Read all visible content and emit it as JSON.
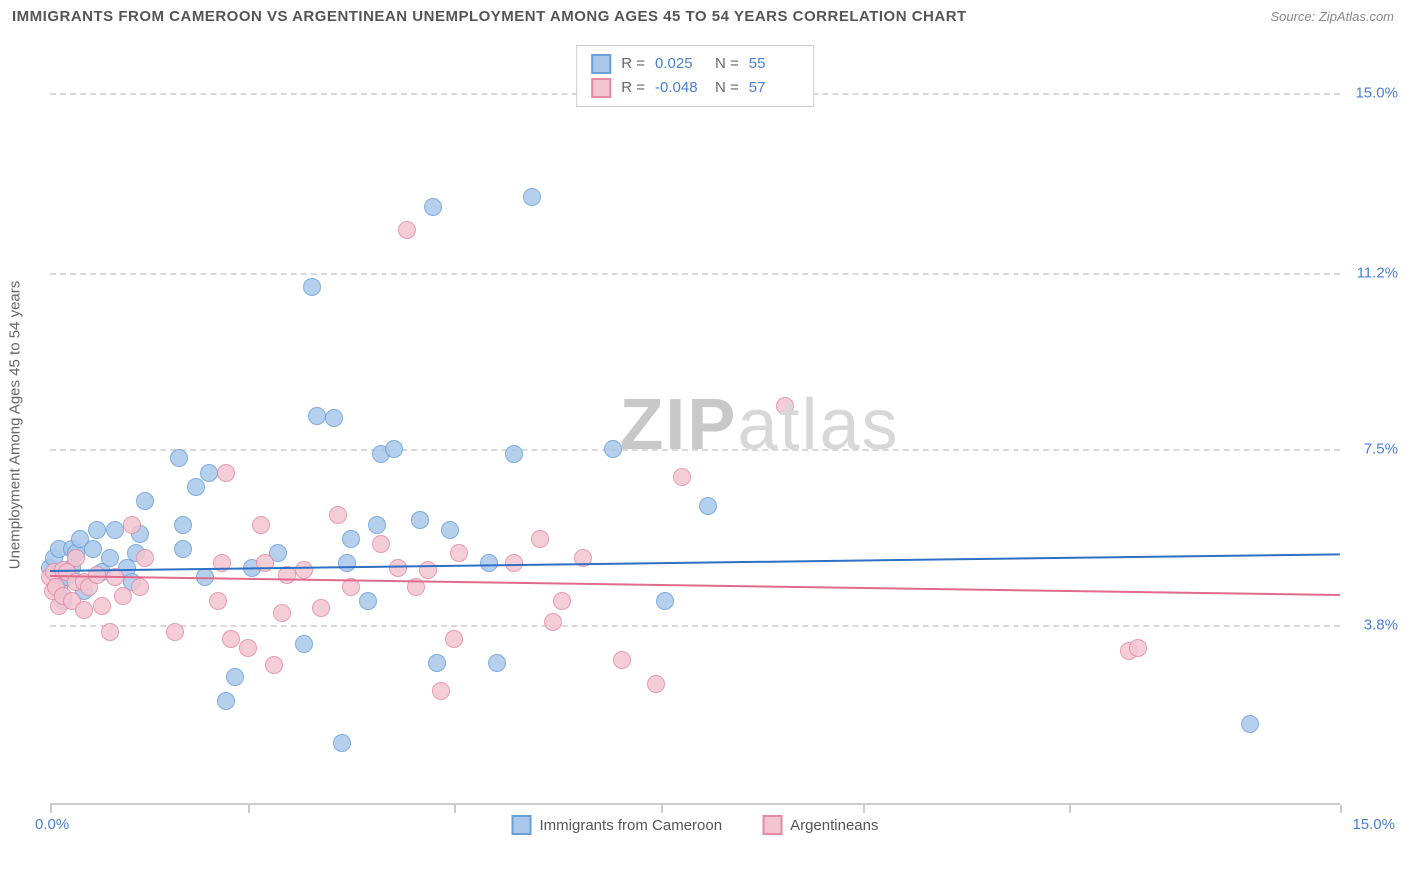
{
  "title": "IMMIGRANTS FROM CAMEROON VS ARGENTINEAN UNEMPLOYMENT AMONG AGES 45 TO 54 YEARS CORRELATION CHART",
  "source": "Source: ZipAtlas.com",
  "watermark_bold": "ZIP",
  "watermark_light": "atlas",
  "chart": {
    "type": "scatter",
    "ylabel": "Unemployment Among Ages 45 to 54 years",
    "x_min_label": "0.0%",
    "x_max_label": "15.0%",
    "xlim": [
      0,
      15
    ],
    "ylim": [
      0,
      16
    ],
    "yticks": [
      {
        "label": "15.0%",
        "val": 15.0
      },
      {
        "label": "11.2%",
        "val": 11.2
      },
      {
        "label": "7.5%",
        "val": 7.5
      },
      {
        "label": "3.8%",
        "val": 3.8
      }
    ],
    "xticks_val": [
      0,
      2.3,
      4.7,
      7.1,
      9.45,
      11.85,
      15
    ],
    "grid_color": "#d8d8d8",
    "background_color": "#ffffff",
    "series": [
      {
        "name": "Immigrants from Cameroon",
        "marker_fill": "#a9c8eb",
        "marker_stroke": "#6b9fd8",
        "marker_size": 18,
        "trend_color": "#2f6fc4",
        "trend": {
          "y_at_xmin": 4.95,
          "y_at_xmax": 5.3
        },
        "stats": {
          "r": "0.025",
          "n": "55"
        },
        "points": [
          [
            0.0,
            5.0
          ],
          [
            0.05,
            5.2
          ],
          [
            0.1,
            4.6
          ],
          [
            0.1,
            5.4
          ],
          [
            0.15,
            4.3
          ],
          [
            0.2,
            4.8
          ],
          [
            0.25,
            5.4
          ],
          [
            0.25,
            5.0
          ],
          [
            0.3,
            5.3
          ],
          [
            0.35,
            5.6
          ],
          [
            0.4,
            4.5
          ],
          [
            0.5,
            5.4
          ],
          [
            0.55,
            5.8
          ],
          [
            0.6,
            4.9
          ],
          [
            0.7,
            5.2
          ],
          [
            0.75,
            5.8
          ],
          [
            0.9,
            5.0
          ],
          [
            0.95,
            4.7
          ],
          [
            1.0,
            5.3
          ],
          [
            1.05,
            5.7
          ],
          [
            1.1,
            6.4
          ],
          [
            1.5,
            7.3
          ],
          [
            1.55,
            5.4
          ],
          [
            1.55,
            5.9
          ],
          [
            1.7,
            6.7
          ],
          [
            1.8,
            4.8
          ],
          [
            1.85,
            7.0
          ],
          [
            2.05,
            2.2
          ],
          [
            2.15,
            2.7
          ],
          [
            2.35,
            5.0
          ],
          [
            2.65,
            5.3
          ],
          [
            2.95,
            3.4
          ],
          [
            3.05,
            10.9
          ],
          [
            3.1,
            8.2
          ],
          [
            3.3,
            8.15
          ],
          [
            3.4,
            1.3
          ],
          [
            3.45,
            5.1
          ],
          [
            3.5,
            5.6
          ],
          [
            3.7,
            4.3
          ],
          [
            3.8,
            5.9
          ],
          [
            3.85,
            7.4
          ],
          [
            4.0,
            7.5
          ],
          [
            4.3,
            6.0
          ],
          [
            4.45,
            12.6
          ],
          [
            4.5,
            3.0
          ],
          [
            4.65,
            5.8
          ],
          [
            5.1,
            5.1
          ],
          [
            5.2,
            3.0
          ],
          [
            5.4,
            7.4
          ],
          [
            5.6,
            12.8
          ],
          [
            6.55,
            7.5
          ],
          [
            7.15,
            4.3
          ],
          [
            7.65,
            6.3
          ],
          [
            13.95,
            1.7
          ]
        ]
      },
      {
        "name": "Argentineans",
        "marker_fill": "#f3c5d1",
        "marker_stroke": "#e48aa4",
        "marker_size": 18,
        "trend_color": "#e06a8c",
        "trend": {
          "y_at_xmin": 4.85,
          "y_at_xmax": 4.45
        },
        "stats": {
          "r": "-0.048",
          "n": "57"
        },
        "points": [
          [
            0.0,
            4.8
          ],
          [
            0.03,
            4.5
          ],
          [
            0.05,
            4.9
          ],
          [
            0.07,
            4.6
          ],
          [
            0.1,
            4.2
          ],
          [
            0.15,
            4.95
          ],
          [
            0.15,
            4.4
          ],
          [
            0.2,
            4.9
          ],
          [
            0.25,
            4.3
          ],
          [
            0.3,
            4.7
          ],
          [
            0.3,
            5.2
          ],
          [
            0.4,
            4.1
          ],
          [
            0.4,
            4.7
          ],
          [
            0.45,
            4.6
          ],
          [
            0.55,
            4.85
          ],
          [
            0.6,
            4.2
          ],
          [
            0.7,
            3.65
          ],
          [
            0.75,
            4.8
          ],
          [
            0.85,
            4.4
          ],
          [
            0.95,
            5.9
          ],
          [
            1.05,
            4.6
          ],
          [
            1.1,
            5.2
          ],
          [
            1.45,
            3.65
          ],
          [
            1.95,
            4.3
          ],
          [
            2.0,
            5.1
          ],
          [
            2.05,
            7.0
          ],
          [
            2.1,
            3.5
          ],
          [
            2.3,
            3.3
          ],
          [
            2.45,
            5.9
          ],
          [
            2.5,
            5.1
          ],
          [
            2.6,
            2.95
          ],
          [
            2.7,
            4.05
          ],
          [
            2.75,
            4.85
          ],
          [
            2.95,
            4.95
          ],
          [
            3.15,
            4.15
          ],
          [
            3.35,
            6.1
          ],
          [
            3.5,
            4.6
          ],
          [
            3.85,
            5.5
          ],
          [
            4.05,
            5.0
          ],
          [
            4.15,
            12.1
          ],
          [
            4.25,
            4.6
          ],
          [
            4.4,
            4.95
          ],
          [
            4.55,
            2.4
          ],
          [
            4.7,
            3.5
          ],
          [
            4.75,
            5.3
          ],
          [
            5.4,
            5.1
          ],
          [
            5.7,
            5.6
          ],
          [
            5.85,
            3.85
          ],
          [
            5.95,
            4.3
          ],
          [
            6.2,
            5.2
          ],
          [
            6.65,
            3.05
          ],
          [
            7.05,
            2.55
          ],
          [
            7.35,
            6.9
          ],
          [
            8.55,
            8.4
          ],
          [
            12.55,
            3.25
          ],
          [
            12.65,
            3.3
          ]
        ]
      }
    ],
    "stat_legend_labels": {
      "r": "R =",
      "n": "N ="
    }
  }
}
